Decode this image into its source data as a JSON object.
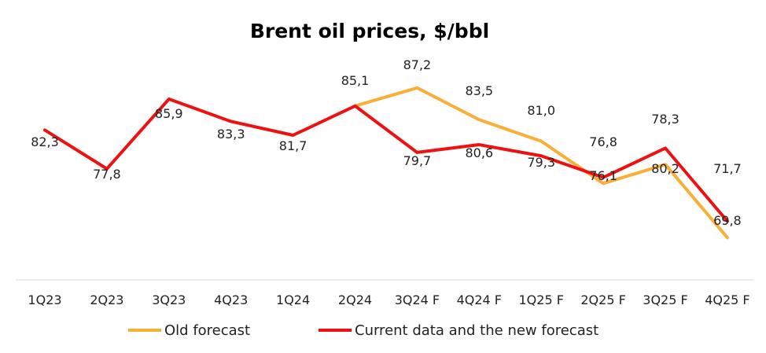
{
  "chart_data": {
    "type": "line",
    "title": "Brent oil prices, $/bbl",
    "categories": [
      "1Q23",
      "2Q23",
      "3Q23",
      "4Q23",
      "1Q24",
      "2Q24",
      "3Q24 F",
      "4Q24 F",
      "1Q25 F",
      "2Q25 F",
      "3Q25 F",
      "4Q25 F"
    ],
    "ylim": [
      60,
      95
    ],
    "series": [
      {
        "name": "Old forecast",
        "color": "#F9AE35",
        "values": [
          null,
          null,
          null,
          null,
          null,
          85.1,
          87.2,
          83.5,
          81.0,
          76.1,
          78.3,
          69.8
        ],
        "labels": [
          null,
          null,
          null,
          null,
          null,
          null,
          "87,2",
          "83,5",
          "81,0",
          "76,1",
          "78,3",
          "69,8"
        ]
      },
      {
        "name": "Current data and the new forecast",
        "color": "#EE1111",
        "values": [
          82.3,
          77.8,
          85.9,
          83.3,
          81.7,
          85.1,
          79.7,
          80.6,
          79.3,
          76.8,
          80.2,
          71.7
        ],
        "labels": [
          "82,3",
          "77,8",
          "85,9",
          "83,3",
          "81,7",
          "85,1",
          "79,7",
          "80,6",
          "79,3",
          "76,8",
          "80,2",
          "71,7"
        ]
      }
    ]
  }
}
